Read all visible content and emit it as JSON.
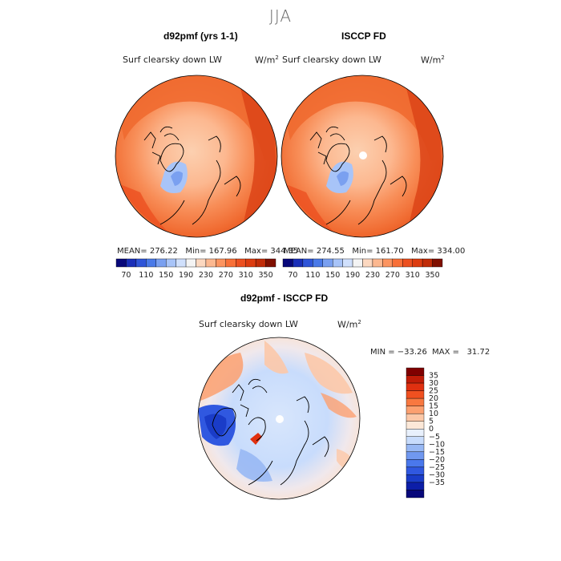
{
  "figure": {
    "season": "JJA"
  },
  "panel_left": {
    "title": "d92pmf (yrs 1-1)",
    "field": "Surf clearsky down LW",
    "units": "W/m",
    "units_exp": "2",
    "stats": "MEAN= 276.22   Min= 167.96   Max= 344.35"
  },
  "panel_right": {
    "title": "ISCCP FD",
    "field": "Surf clearsky down LW",
    "units": "W/m",
    "units_exp": "2",
    "stats": "MEAN= 274.55   Min= 161.70   Max= 334.00"
  },
  "panel_diff": {
    "title": "d92pmf - ISCCP FD",
    "field": "Surf clearsky down LW",
    "units": "W/m",
    "units_exp": "2",
    "stats": "MIN = −33.26  MAX =   31.72"
  },
  "colorbar_main": {
    "colors": [
      "#08087a",
      "#1a2fb8",
      "#2f55d8",
      "#4a7ae8",
      "#7aa0f0",
      "#a8c4f8",
      "#d0e0fc",
      "#f4f4f4",
      "#fcd8c0",
      "#fcb890",
      "#fc9460",
      "#f87038",
      "#ec5020",
      "#dc3c10",
      "#c02c08",
      "#801000"
    ],
    "tick_labels": [
      "70",
      "110",
      "150",
      "190",
      "230",
      "270",
      "310",
      "350"
    ]
  },
  "colorbar_diff": {
    "colors": [
      "#08087a",
      "#0c1ea8",
      "#1a3cc8",
      "#3058e0",
      "#4a78ec",
      "#7098f0",
      "#98b8f4",
      "#c8dcfc",
      "#e8f0fc",
      "#fce8d8",
      "#fcc8a8",
      "#fca070",
      "#f87840",
      "#f05020",
      "#e03010",
      "#c01c08",
      "#800000"
    ],
    "labels": [
      "35",
      "30",
      "25",
      "20",
      "15",
      "10",
      "5",
      "0",
      "−5",
      "−10",
      "−15",
      "−20",
      "−25",
      "−30",
      "−35"
    ]
  }
}
